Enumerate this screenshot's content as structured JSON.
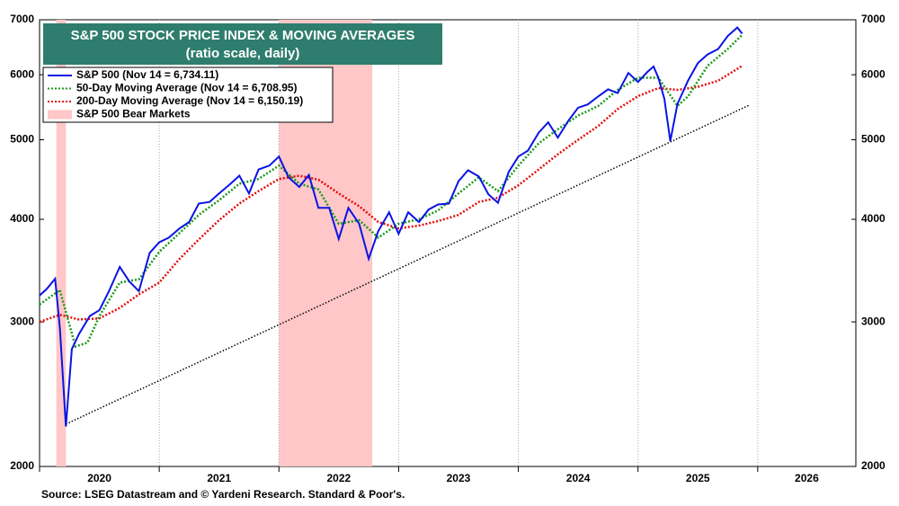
{
  "chart_data": {
    "type": "line",
    "title": "S&P 500 STOCK PRICE INDEX & MOVING AVERAGES",
    "subtitle": "(ratio scale, daily)",
    "source": "Source: LSEG Datastream and © Yardeni Research. Standard & Poor's.",
    "log_scale": true,
    "xlim": [
      2020,
      2026.82
    ],
    "xticks": [
      {
        "value": 2020,
        "label": "2020"
      },
      {
        "value": 2021,
        "label": "2021"
      },
      {
        "value": 2022,
        "label": "2022"
      },
      {
        "value": 2023,
        "label": "2023"
      },
      {
        "value": 2024,
        "label": "2024"
      },
      {
        "value": 2025,
        "label": "2025"
      },
      {
        "value": 2026,
        "label": "2026"
      }
    ],
    "ylim": [
      2000,
      7000
    ],
    "yticks": [
      2000,
      3000,
      4000,
      5000,
      6000,
      7000
    ],
    "grid": true,
    "bear_markets": {
      "name": "S&P 500 Bear Markets",
      "color": "#ffc7c7",
      "periods": [
        [
          2020.14,
          2020.22
        ],
        [
          2022.0,
          2022.78
        ]
      ]
    },
    "series": [
      {
        "name": "S&P 500 (Nov 14 = 6,734.11)",
        "color": "#0a14e6",
        "style": "solid",
        "x": [
          2020.0,
          2020.06,
          2020.13,
          2020.17,
          2020.22,
          2020.27,
          2020.33,
          2020.42,
          2020.5,
          2020.58,
          2020.67,
          2020.75,
          2020.83,
          2020.92,
          2021.0,
          2021.08,
          2021.17,
          2021.25,
          2021.33,
          2021.42,
          2021.5,
          2021.58,
          2021.67,
          2021.75,
          2021.83,
          2021.92,
          2022.0,
          2022.08,
          2022.17,
          2022.25,
          2022.33,
          2022.42,
          2022.5,
          2022.58,
          2022.67,
          2022.75,
          2022.83,
          2022.92,
          2023.0,
          2023.08,
          2023.17,
          2023.25,
          2023.33,
          2023.42,
          2023.5,
          2023.58,
          2023.67,
          2023.75,
          2023.83,
          2023.92,
          2024.0,
          2024.08,
          2024.17,
          2024.25,
          2024.33,
          2024.42,
          2024.5,
          2024.58,
          2024.67,
          2024.75,
          2024.83,
          2024.92,
          2025.0,
          2025.08,
          2025.13,
          2025.17,
          2025.22,
          2025.27,
          2025.33,
          2025.42,
          2025.5,
          2025.58,
          2025.67,
          2025.75,
          2025.83,
          2025.87
        ],
        "values": [
          3230,
          3290,
          3386,
          2950,
          2237,
          2780,
          2900,
          3050,
          3100,
          3270,
          3500,
          3360,
          3270,
          3640,
          3750,
          3800,
          3900,
          3970,
          4180,
          4200,
          4300,
          4400,
          4520,
          4300,
          4600,
          4650,
          4770,
          4500,
          4380,
          4530,
          4130,
          4130,
          3785,
          4130,
          3950,
          3580,
          3870,
          4080,
          3840,
          4080,
          3970,
          4110,
          4170,
          4180,
          4450,
          4590,
          4510,
          4290,
          4190,
          4570,
          4770,
          4850,
          5100,
          5250,
          5030,
          5280,
          5470,
          5520,
          5650,
          5760,
          5700,
          6030,
          5880,
          6050,
          6140,
          5950,
          5610,
          4980,
          5530,
          5910,
          6200,
          6350,
          6450,
          6690,
          6850,
          6734.11
        ]
      },
      {
        "name": "50-Day Moving Average (Nov 14 = 6,708.95)",
        "color": "#1a9a1a",
        "style": "dotted",
        "x": [
          2020.0,
          2020.17,
          2020.3,
          2020.4,
          2020.5,
          2020.67,
          2020.83,
          2021.0,
          2021.17,
          2021.33,
          2021.5,
          2021.67,
          2021.83,
          2022.0,
          2022.17,
          2022.33,
          2022.5,
          2022.67,
          2022.83,
          2023.0,
          2023.17,
          2023.33,
          2023.5,
          2023.67,
          2023.83,
          2024.0,
          2024.17,
          2024.33,
          2024.5,
          2024.67,
          2024.83,
          2025.0,
          2025.17,
          2025.33,
          2025.42,
          2025.58,
          2025.75,
          2025.87
        ],
        "values": [
          3150,
          3280,
          2800,
          2830,
          3050,
          3350,
          3380,
          3650,
          3850,
          4050,
          4220,
          4420,
          4480,
          4650,
          4420,
          4350,
          3950,
          3990,
          3800,
          3950,
          4000,
          4100,
          4300,
          4500,
          4330,
          4650,
          4950,
          5150,
          5350,
          5500,
          5750,
          5950,
          5950,
          5500,
          5650,
          6150,
          6450,
          6708.95
        ]
      },
      {
        "name": "200-Day Moving Average (Nov 14 = 6,150.19)",
        "color": "#e60a0a",
        "style": "dotted",
        "x": [
          2020.0,
          2020.17,
          2020.33,
          2020.5,
          2020.67,
          2020.83,
          2021.0,
          2021.17,
          2021.33,
          2021.5,
          2021.67,
          2021.83,
          2022.0,
          2022.17,
          2022.33,
          2022.5,
          2022.67,
          2022.83,
          2023.0,
          2023.17,
          2023.33,
          2023.5,
          2023.67,
          2023.83,
          2024.0,
          2024.17,
          2024.33,
          2024.5,
          2024.67,
          2024.83,
          2025.0,
          2025.17,
          2025.33,
          2025.5,
          2025.67,
          2025.87
        ],
        "values": [
          3000,
          3060,
          3020,
          3030,
          3120,
          3240,
          3350,
          3580,
          3780,
          3990,
          4180,
          4330,
          4480,
          4520,
          4470,
          4300,
          4150,
          3970,
          3900,
          3930,
          3980,
          4050,
          4200,
          4250,
          4400,
          4600,
          4800,
          5000,
          5200,
          5450,
          5650,
          5780,
          5750,
          5800,
          5900,
          6150.19
        ]
      }
    ],
    "trend_line": {
      "color": "#000000",
      "x": [
        2020.22,
        2025.93
      ],
      "values": [
        2252,
        5510
      ]
    }
  }
}
